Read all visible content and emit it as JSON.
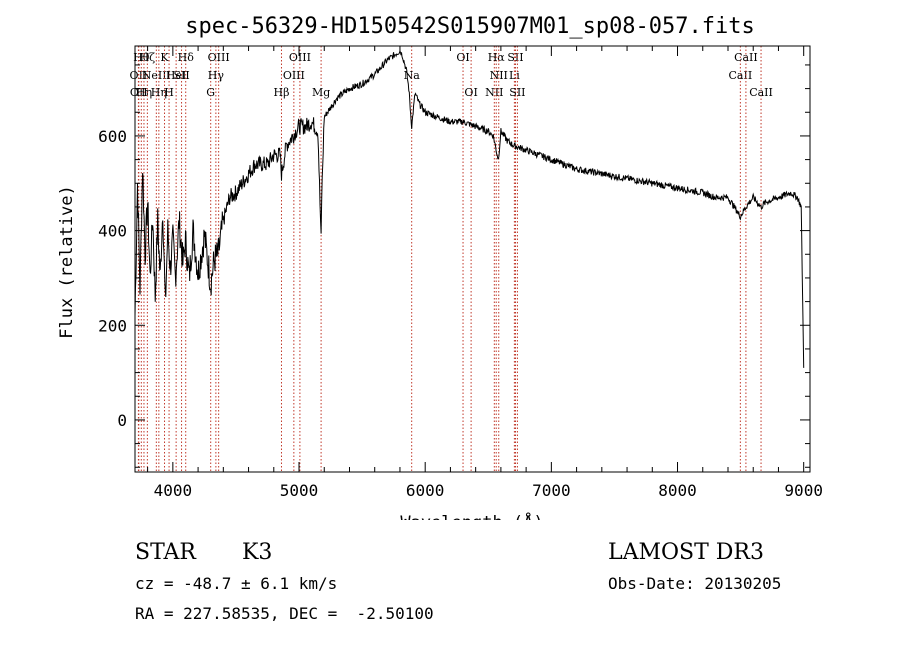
{
  "chart_data": {
    "type": "line",
    "title": "spec-56329-HD150542S015907M01_sp08-057.fits",
    "xlabel": "Wavelength (Å)",
    "ylabel": "Flux (relative)",
    "xlim": [
      3700,
      9050
    ],
    "ylim": [
      -110,
      790
    ],
    "xticks": [
      4000,
      5000,
      6000,
      7000,
      8000,
      9000
    ],
    "yticks": [
      0,
      200,
      400,
      600
    ],
    "series": [
      {
        "name": "flux",
        "x": [
          3700,
          3720,
          3740,
          3760,
          3780,
          3800,
          3820,
          3840,
          3860,
          3880,
          3900,
          3920,
          3940,
          3960,
          3980,
          4000,
          4020,
          4050,
          4080,
          4100,
          4130,
          4160,
          4200,
          4250,
          4300,
          4330,
          4360,
          4400,
          4450,
          4500,
          4550,
          4600,
          4650,
          4700,
          4750,
          4800,
          4850,
          4861,
          4900,
          4950,
          5000,
          5050,
          5100,
          5150,
          5175,
          5180,
          5200,
          5250,
          5300,
          5400,
          5500,
          5600,
          5700,
          5750,
          5800,
          5820,
          5850,
          5870,
          5893,
          5920,
          5950,
          6000,
          6100,
          6200,
          6300,
          6400,
          6500,
          6540,
          6563,
          6580,
          6600,
          6650,
          6700,
          6800,
          6900,
          7000,
          7200,
          7400,
          7600,
          7800,
          8000,
          8200,
          8300,
          8400,
          8450,
          8498,
          8542,
          8600,
          8662,
          8700,
          8800,
          8900,
          8950,
          8980,
          9000
        ],
        "values": [
          220,
          500,
          280,
          540,
          350,
          460,
          300,
          430,
          260,
          420,
          300,
          450,
          240,
          400,
          320,
          380,
          300,
          420,
          330,
          380,
          300,
          400,
          310,
          390,
          290,
          340,
          350,
          420,
          470,
          480,
          500,
          520,
          540,
          540,
          540,
          560,
          560,
          520,
          580,
          600,
          620,
          620,
          630,
          610,
          380,
          470,
          640,
          660,
          680,
          700,
          710,
          730,
          760,
          770,
          780,
          770,
          740,
          700,
          620,
          690,
          670,
          650,
          640,
          630,
          630,
          620,
          610,
          600,
          570,
          550,
          610,
          590,
          580,
          570,
          560,
          550,
          530,
          520,
          510,
          500,
          490,
          480,
          470,
          470,
          450,
          430,
          450,
          470,
          450,
          460,
          470,
          480,
          470,
          450,
          110
        ]
      }
    ],
    "lines": [
      {
        "x": 3727,
        "label": "OII",
        "row": 2
      },
      {
        "x": 3730,
        "label": "OII",
        "row": 3
      },
      {
        "x": 3750,
        "label": "Hθ",
        "row": 1
      },
      {
        "x": 3771,
        "label": "Hη",
        "row": 3
      },
      {
        "x": 3798,
        "label": "Hζ",
        "row": 1
      },
      {
        "x": 3869,
        "label": "NeIII",
        "row": 2
      },
      {
        "x": 3889,
        "label": "Hη",
        "row": 3
      },
      {
        "x": 3934,
        "label": "K",
        "row": 1
      },
      {
        "x": 3970,
        "label": "H",
        "row": 3
      },
      {
        "x": 4026,
        "label": "HeI",
        "row": 2
      },
      {
        "x": 4069,
        "label": "SII",
        "row": 2
      },
      {
        "x": 4102,
        "label": "Hδ",
        "row": 1
      },
      {
        "x": 4300,
        "label": "G",
        "row": 3
      },
      {
        "x": 4341,
        "label": "Hγ",
        "row": 2
      },
      {
        "x": 4363,
        "label": "OIII",
        "row": 1
      },
      {
        "x": 4861,
        "label": "Hβ",
        "row": 3
      },
      {
        "x": 4959,
        "label": "OIII",
        "row": 2
      },
      {
        "x": 5007,
        "label": "OIII",
        "row": 1
      },
      {
        "x": 5175,
        "label": "Mg",
        "row": 3
      },
      {
        "x": 5893,
        "label": "Na",
        "row": 2
      },
      {
        "x": 6300,
        "label": "OI",
        "row": 1
      },
      {
        "x": 6364,
        "label": "OI",
        "row": 3
      },
      {
        "x": 6548,
        "label": "NII",
        "row": 3
      },
      {
        "x": 6563,
        "label": "Hα",
        "row": 1
      },
      {
        "x": 6583,
        "label": "NII",
        "row": 2
      },
      {
        "x": 6707,
        "label": "Li",
        "row": 2
      },
      {
        "x": 6716,
        "label": "SII",
        "row": 1
      },
      {
        "x": 6731,
        "label": "SII",
        "row": 3
      },
      {
        "x": 8498,
        "label": "CaII",
        "row": 2
      },
      {
        "x": 8542,
        "label": "CaII",
        "row": 1
      },
      {
        "x": 8662,
        "label": "CaII",
        "row": 3
      }
    ]
  },
  "info": {
    "class": "STAR",
    "subclass": "K3",
    "survey": "LAMOST DR3",
    "cz": "cz = -48.7 ± 6.1 km/s",
    "obs_date": "Obs-Date: 20130205",
    "coords": "RA = 227.58535, DEC =  -2.50100"
  },
  "colors": {
    "axis": "#000000",
    "spectrum": "#000000",
    "line_marker": "#c0392b"
  }
}
